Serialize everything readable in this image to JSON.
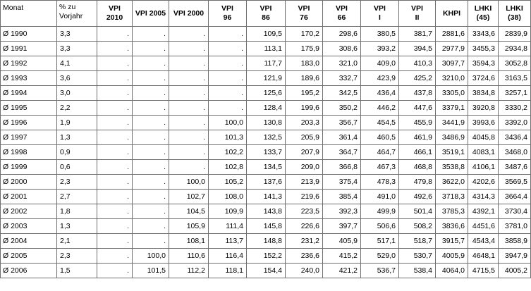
{
  "headers": [
    {
      "key": "month",
      "line1": "Monat",
      "line2": ""
    },
    {
      "key": "change",
      "line1": "% zu",
      "line2": "Vorjahr"
    },
    {
      "key": "vpi2010",
      "line1": "VPI",
      "line2": "2010"
    },
    {
      "key": "vpi2005",
      "line1": "VPI 2005",
      "line2": ""
    },
    {
      "key": "vpi2000",
      "line1": "VPI 2000",
      "line2": ""
    },
    {
      "key": "vpi96",
      "line1": "VPI",
      "line2": "96"
    },
    {
      "key": "vpi86",
      "line1": "VPI",
      "line2": "86"
    },
    {
      "key": "vpi76",
      "line1": "VPI",
      "line2": "76"
    },
    {
      "key": "vpi66",
      "line1": "VPI",
      "line2": "66"
    },
    {
      "key": "vpi1",
      "line1": "VPI",
      "line2": "I"
    },
    {
      "key": "vpi2",
      "line1": "VPI",
      "line2": "II"
    },
    {
      "key": "khpi",
      "line1": "KHPI",
      "line2": ""
    },
    {
      "key": "lhki45",
      "line1": "LHKI",
      "line2": "(45)"
    },
    {
      "key": "lhki38",
      "line1": "LHKI",
      "line2": "(38)"
    }
  ],
  "rows": [
    [
      "Ø 1990",
      "3,3",
      ".",
      ".",
      ".",
      ".",
      "109,5",
      "170,2",
      "298,6",
      "380,5",
      "381,7",
      "2881,6",
      "3343,6",
      "2839,9"
    ],
    [
      "Ø 1991",
      "3,3",
      ".",
      ".",
      ".",
      ".",
      "113,1",
      "175,9",
      "308,6",
      "393,2",
      "394,5",
      "2977,9",
      "3455,3",
      "2934,8"
    ],
    [
      "Ø 1992",
      "4,1",
      ".",
      ".",
      ".",
      ".",
      "117,7",
      "183,0",
      "321,0",
      "409,0",
      "410,3",
      "3097,7",
      "3594,3",
      "3052,8"
    ],
    [
      "Ø 1993",
      "3,6",
      ".",
      ".",
      ".",
      ".",
      "121,9",
      "189,6",
      "332,7",
      "423,9",
      "425,2",
      "3210,0",
      "3724,6",
      "3163,5"
    ],
    [
      "Ø 1994",
      "3,0",
      ".",
      ".",
      ".",
      ".",
      "125,6",
      "195,2",
      "342,5",
      "436,4",
      "437,8",
      "3305,0",
      "3834,8",
      "3257,1"
    ],
    [
      "Ø 1995",
      "2,2",
      ".",
      ".",
      ".",
      ".",
      "128,4",
      "199,6",
      "350,2",
      "446,2",
      "447,6",
      "3379,1",
      "3920,8",
      "3330,2"
    ],
    [
      "Ø 1996",
      "1,9",
      ".",
      ".",
      ".",
      "100,0",
      "130,8",
      "203,3",
      "356,7",
      "454,5",
      "455,9",
      "3441,9",
      "3993,6",
      "3392,0"
    ],
    [
      "Ø 1997",
      "1,3",
      ".",
      ".",
      ".",
      "101,3",
      "132,5",
      "205,9",
      "361,4",
      "460,5",
      "461,9",
      "3486,9",
      "4045,8",
      "3436,4"
    ],
    [
      "Ø 1998",
      "0,9",
      ".",
      ".",
      ".",
      "102,2",
      "133,7",
      "207,9",
      "364,7",
      "464,7",
      "466,1",
      "3519,1",
      "4083,1",
      "3468,0"
    ],
    [
      "Ø 1999",
      "0,6",
      ".",
      ".",
      ".",
      "102,8",
      "134,5",
      "209,0",
      "366,8",
      "467,3",
      "468,8",
      "3538,8",
      "4106,1",
      "3487,6"
    ],
    [
      "Ø 2000",
      "2,3",
      ".",
      ".",
      "100,0",
      "105,2",
      "137,6",
      "213,9",
      "375,4",
      "478,3",
      "479,8",
      "3622,0",
      "4202,6",
      "3569,5"
    ],
    [
      "Ø 2001",
      "2,7",
      ".",
      ".",
      "102,7",
      "108,0",
      "141,3",
      "219,6",
      "385,4",
      "491,0",
      "492,6",
      "3718,3",
      "4314,3",
      "3664,4"
    ],
    [
      "Ø 2002",
      "1,8",
      ".",
      ".",
      "104,5",
      "109,9",
      "143,8",
      "223,5",
      "392,3",
      "499,9",
      "501,4",
      "3785,3",
      "4392,1",
      "3730,4"
    ],
    [
      "Ø 2003",
      "1,3",
      ".",
      ".",
      "105,9",
      "111,4",
      "145,8",
      "226,6",
      "397,7",
      "506,6",
      "508,2",
      "3836,6",
      "4451,6",
      "3781,0"
    ],
    [
      "Ø 2004",
      "2,1",
      ".",
      ".",
      "108,1",
      "113,7",
      "148,8",
      "231,2",
      "405,9",
      "517,1",
      "518,7",
      "3915,7",
      "4543,4",
      "3858,9"
    ],
    [
      "Ø 2005",
      "2,3",
      ".",
      "100,0",
      "110,6",
      "116,4",
      "152,2",
      "236,6",
      "415,2",
      "529,0",
      "530,7",
      "4005,9",
      "4648,1",
      "3947,9"
    ],
    [
      "Ø 2006",
      "1,5",
      ".",
      "101,5",
      "112,2",
      "118,1",
      "154,4",
      "240,0",
      "421,2",
      "536,7",
      "538,4",
      "4064,0",
      "4715,5",
      "4005,2"
    ]
  ]
}
